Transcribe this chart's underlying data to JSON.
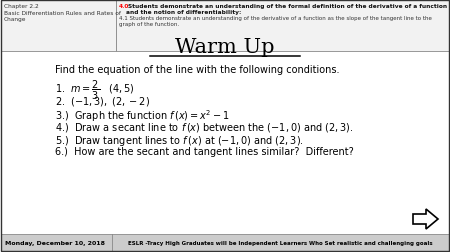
{
  "title": "Warm Up",
  "chapter_label": "Chapter 2.2\nBasic Differentiation Rules and Rates of\nChange",
  "std_40_bold": "4.0",
  "std_40_rest": " Students demonstrate an understanding of the formal definition of the derivative of a function at a point\nand the notion of differentiability:",
  "std_41": "4.1 Students demonstrate an understanding of the derivative of a function as the slope of the tangent line to the\ngraph of the function.",
  "intro": "Find the equation of the line with the following conditions.",
  "footer_left": "Monday, December 10, 2018",
  "footer_right": "ESLR -Tracy High Graduates will be Independent Learners Who Set realistic and challenging goals",
  "bg_color": "#ffffff",
  "header_bg": "#f2f2f2",
  "header_border": "#999999",
  "footer_bg": "#cccccc"
}
